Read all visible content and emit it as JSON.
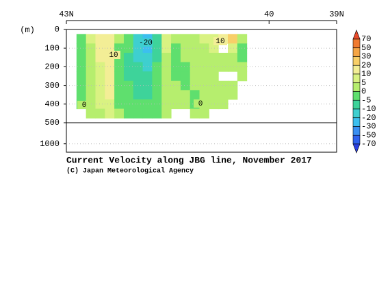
{
  "chart_data": {
    "type": "contour-section",
    "title": "Current Velocity along JBG line, November 2017",
    "credit": "(C) Japan Meteorological Agency",
    "y_unit": "(m)",
    "xlim": [
      43,
      39
    ],
    "xticks": [
      {
        "value": 43,
        "label": "43N"
      },
      {
        "value": 40,
        "label": "40"
      },
      {
        "value": 39,
        "label": "39N"
      }
    ],
    "ylim": [
      0,
      1200
    ],
    "ybreak": 500,
    "yticks": [
      0,
      100,
      200,
      300,
      400,
      500,
      1000
    ],
    "grid": true,
    "x": [
      42.78,
      42.64,
      42.5,
      42.36,
      42.22,
      42.08,
      41.94,
      41.8,
      41.66,
      41.52,
      41.38,
      41.24,
      41.1,
      40.96,
      40.82,
      40.68,
      40.54,
      40.4
    ],
    "depths": [
      50,
      100,
      150,
      200,
      250,
      300,
      350,
      400,
      450
    ],
    "z": [
      [
        -3,
        -3,
        -4,
        -4,
        -3,
        -2,
        -2,
        -1,
        null
      ],
      [
        8,
        4,
        2,
        2,
        3,
        2,
        2,
        1,
        2
      ],
      [
        12,
        12,
        10,
        8,
        7,
        6,
        6,
        5,
        4
      ],
      [
        15,
        14,
        14,
        12,
        12,
        11,
        10,
        8,
        6
      ],
      [
        1,
        -2,
        -3,
        -3,
        -3,
        -3,
        -2,
        -1,
        1
      ],
      [
        -4,
        -5,
        -6,
        -7,
        -6,
        -5,
        -5,
        -4,
        -3
      ],
      [
        -12,
        -15,
        -12,
        -10,
        -9,
        -8,
        -7,
        -5,
        -2
      ],
      [
        -22,
        -25,
        -18,
        -12,
        -10,
        -8,
        -6,
        -5,
        -3
      ],
      [
        -6,
        -7,
        -6,
        -5,
        -4,
        -4,
        -3,
        -3,
        -2
      ],
      [
        6,
        5,
        4,
        3,
        3,
        4,
        3,
        2,
        1
      ],
      [
        2,
        -1,
        -3,
        -2,
        -1,
        1,
        2,
        1,
        null
      ],
      [
        3,
        2,
        1,
        -1,
        -2,
        -1,
        0,
        1,
        null
      ],
      [
        4,
        3,
        3,
        2,
        2,
        1,
        -1,
        -2,
        1
      ],
      [
        5,
        3,
        3,
        2,
        2,
        2,
        1,
        2,
        2
      ],
      [
        8,
        5,
        4,
        3,
        3,
        2,
        2,
        3,
        null
      ],
      [
        12,
        null,
        4,
        3,
        null,
        3,
        2,
        2,
        null
      ],
      [
        20,
        8,
        4,
        3,
        null,
        2,
        1,
        null,
        null
      ],
      [
        3,
        -2,
        -1,
        2,
        1,
        null,
        null,
        null,
        null
      ]
    ],
    "contour_labels": [
      -20,
      10,
      10,
      0,
      0
    ],
    "colorbar": {
      "levels": [
        70,
        50,
        30,
        20,
        10,
        5,
        0,
        -5,
        -10,
        -20,
        -30,
        -50,
        -70
      ],
      "colors": [
        "#e84a2a",
        "#f07a30",
        "#f5a545",
        "#f8cf68",
        "#f3ee96",
        "#d9f282",
        "#b6ee6e",
        "#5fdf6e",
        "#3ed39a",
        "#3ecfcf",
        "#3cbfef",
        "#3a8ff2",
        "#2f62ee",
        "#2a3fe0"
      ]
    }
  }
}
